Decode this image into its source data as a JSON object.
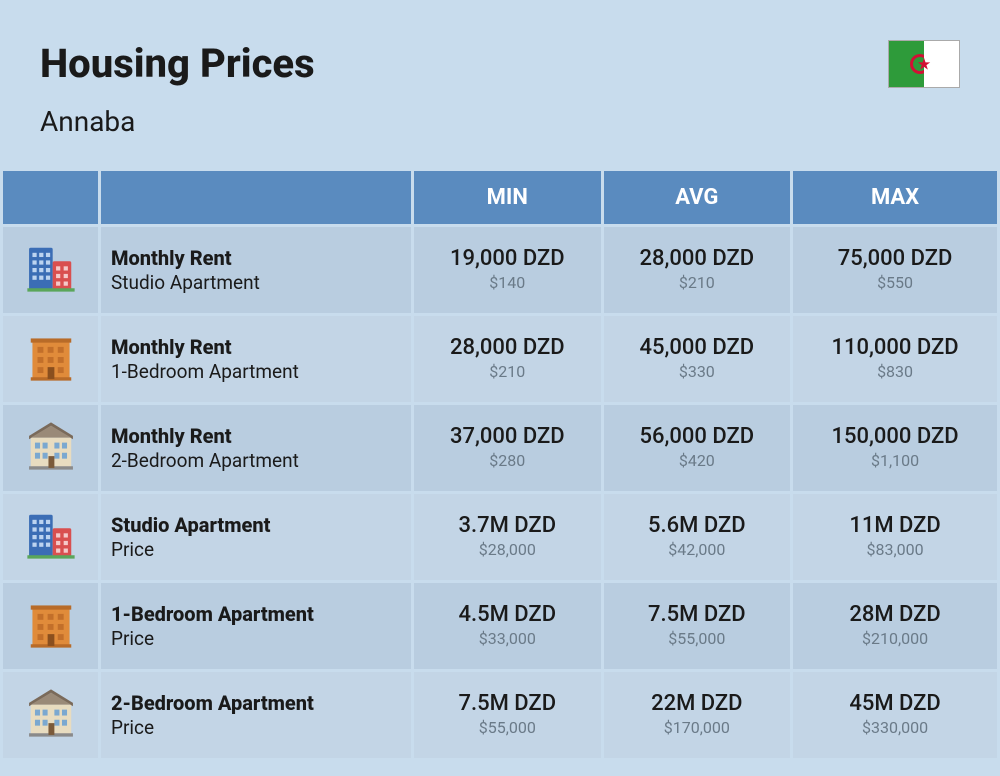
{
  "header": {
    "title": "Housing Prices",
    "city": "Annaba",
    "flag": "algeria"
  },
  "table": {
    "columns": [
      "MIN",
      "AVG",
      "MAX"
    ],
    "header_bg": "#5a8bbf",
    "header_fg": "#ffffff",
    "row_bg_a": "#b9cde0",
    "row_bg_b": "#c3d5e6",
    "rows": [
      {
        "icon": "building-blue-red",
        "title": "Monthly Rent",
        "subtitle": "Studio Apartment",
        "min_main": "19,000 DZD",
        "min_sub": "$140",
        "avg_main": "28,000 DZD",
        "avg_sub": "$210",
        "max_main": "75,000 DZD",
        "max_sub": "$550"
      },
      {
        "icon": "building-orange",
        "title": "Monthly Rent",
        "subtitle": "1-Bedroom Apartment",
        "min_main": "28,000 DZD",
        "min_sub": "$210",
        "avg_main": "45,000 DZD",
        "avg_sub": "$330",
        "max_main": "110,000 DZD",
        "max_sub": "$830"
      },
      {
        "icon": "building-house",
        "title": "Monthly Rent",
        "subtitle": "2-Bedroom Apartment",
        "min_main": "37,000 DZD",
        "min_sub": "$280",
        "avg_main": "56,000 DZD",
        "avg_sub": "$420",
        "max_main": "150,000 DZD",
        "max_sub": "$1,100"
      },
      {
        "icon": "building-blue-red",
        "title": "Studio Apartment",
        "subtitle": "Price",
        "min_main": "3.7M DZD",
        "min_sub": "$28,000",
        "avg_main": "5.6M DZD",
        "avg_sub": "$42,000",
        "max_main": "11M DZD",
        "max_sub": "$83,000"
      },
      {
        "icon": "building-orange",
        "title": "1-Bedroom Apartment",
        "subtitle": "Price",
        "min_main": "4.5M DZD",
        "min_sub": "$33,000",
        "avg_main": "7.5M DZD",
        "avg_sub": "$55,000",
        "max_main": "28M DZD",
        "max_sub": "$210,000"
      },
      {
        "icon": "building-house",
        "title": "2-Bedroom Apartment",
        "subtitle": "Price",
        "min_main": "7.5M DZD",
        "min_sub": "$55,000",
        "avg_main": "22M DZD",
        "avg_sub": "$170,000",
        "max_main": "45M DZD",
        "max_sub": "$330,000"
      }
    ]
  },
  "styling": {
    "page_bg": "#c8dced",
    "title_fontsize": 40,
    "city_fontsize": 28,
    "header_fontsize": 22,
    "row_title_fontsize": 20,
    "row_sub_fontsize": 19,
    "val_main_fontsize": 22,
    "val_sub_fontsize": 16,
    "val_sub_color": "#6a7a88",
    "text_color": "#1a1a1a"
  }
}
